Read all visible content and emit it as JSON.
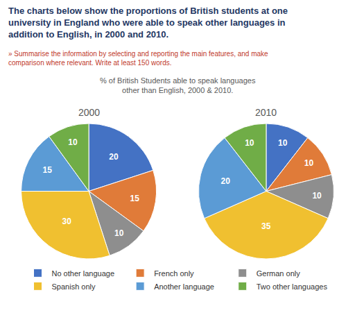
{
  "title": "The charts below show the proportions of British students at one university in England who were able to speak other languages in addition to English, in 2000 and 2010.",
  "subtitle": "» Summarise the information by selecting and reporting the main features, and make comparison where relevant. Write at least 150 words.",
  "annotations": [
    "% of British Students able to speak languages",
    "other than English, 2000 & 2010."
  ],
  "chart_data": [
    {
      "type": "pie",
      "title": "2000",
      "categories": [
        "No other language",
        "French only",
        "German only",
        "Spanish only",
        "Another language",
        "Two other languages"
      ],
      "values": [
        20,
        15,
        10,
        30,
        15,
        10
      ],
      "colors": [
        "#4472C4",
        "#E07B39",
        "#8E8E8E",
        "#F0C030",
        "#5B9BD5",
        "#70AD47"
      ],
      "data_labels": true
    },
    {
      "type": "pie",
      "title": "2010",
      "categories": [
        "No other language",
        "French only",
        "German only",
        "Spanish only",
        "Another language",
        "Two other languages"
      ],
      "values": [
        10,
        10,
        10,
        35,
        20,
        10
      ],
      "colors": [
        "#4472C4",
        "#E07B39",
        "#8E8E8E",
        "#F0C030",
        "#5B9BD5",
        "#70AD47"
      ],
      "data_labels": true
    }
  ]
}
